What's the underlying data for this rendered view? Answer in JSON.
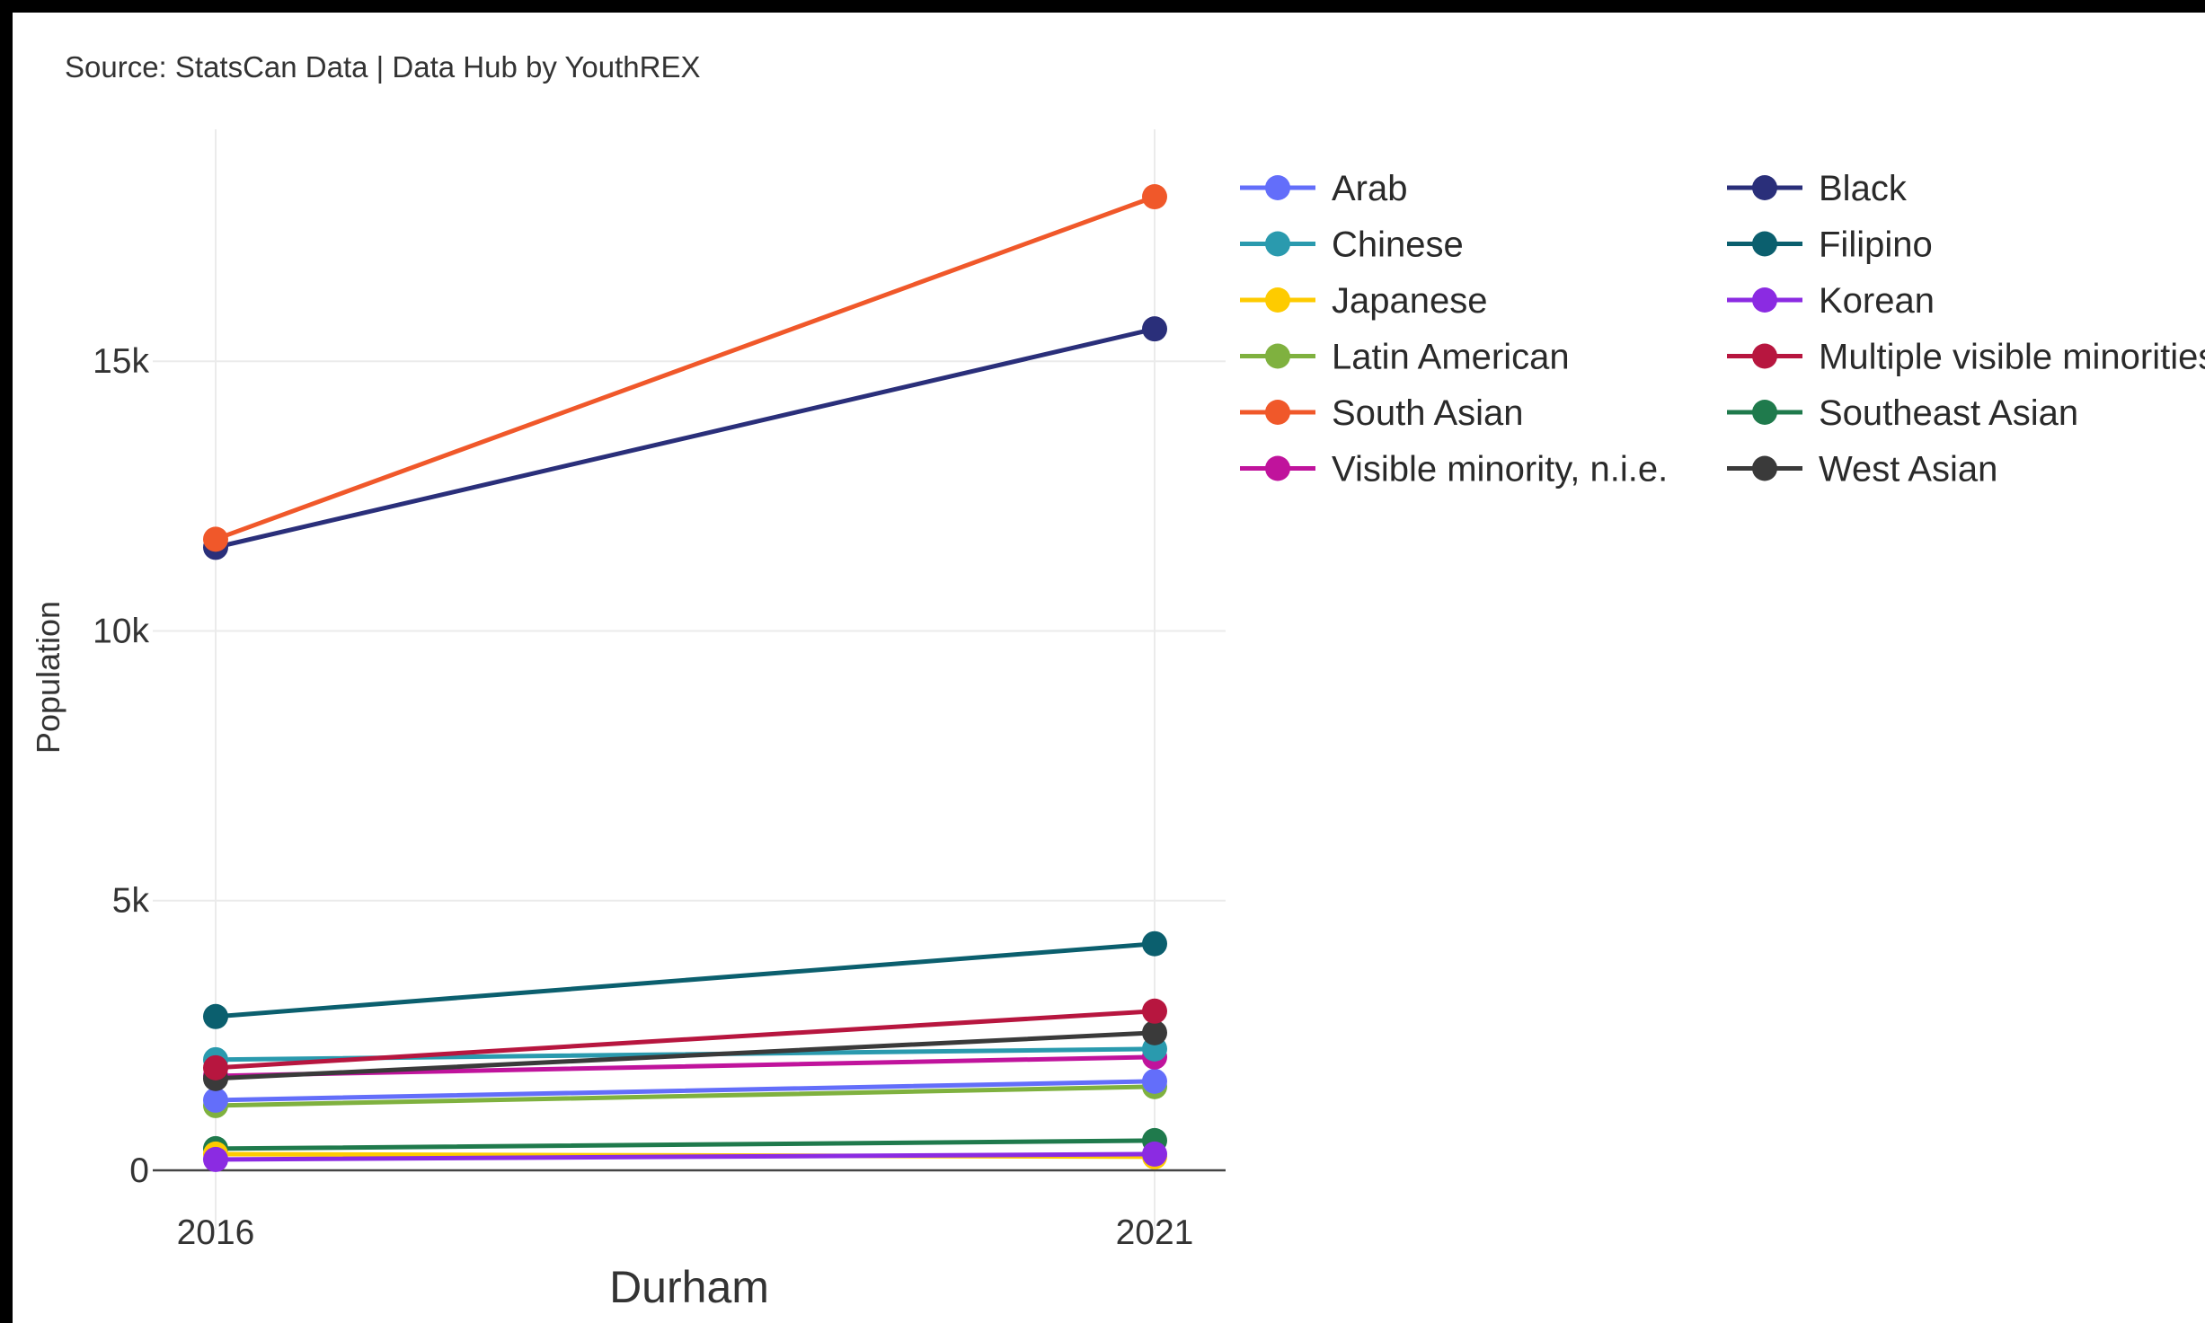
{
  "source_note": "Source: StatsCan Data | Data Hub by YouthREX",
  "chart_data": {
    "type": "line",
    "title": "",
    "xlabel": "Durham",
    "ylabel": "Population",
    "x": [
      "2016",
      "2021"
    ],
    "ylim": [
      -1100,
      19300
    ],
    "y_ticks": [
      0,
      5000,
      10000,
      15000
    ],
    "y_tick_labels": [
      "0",
      "5k",
      "10k",
      "15k"
    ],
    "grid": true,
    "legend_position": "right",
    "series": [
      {
        "name": "Arab",
        "color": "#636efa",
        "values": [
          1300,
          1650
        ]
      },
      {
        "name": "Black",
        "color": "#2a2f7a",
        "values": [
          11550,
          15600
        ]
      },
      {
        "name": "Chinese",
        "color": "#2a9aae",
        "values": [
          2050,
          2250
        ]
      },
      {
        "name": "Filipino",
        "color": "#0b5f6e",
        "values": [
          2850,
          4200
        ]
      },
      {
        "name": "Japanese",
        "color": "#fecb00",
        "values": [
          300,
          250
        ]
      },
      {
        "name": "Korean",
        "color": "#8b2be2",
        "values": [
          200,
          300
        ]
      },
      {
        "name": "Latin American",
        "color": "#7fb13f",
        "values": [
          1200,
          1550
        ]
      },
      {
        "name": "Multiple visible minorities",
        "color": "#b7163f",
        "values": [
          1900,
          2950
        ]
      },
      {
        "name": "South Asian",
        "color": "#f0582a",
        "values": [
          11700,
          18050
        ]
      },
      {
        "name": "Southeast Asian",
        "color": "#1f7a4c",
        "values": [
          400,
          550
        ]
      },
      {
        "name": "Visible minority, n.i.e.",
        "color": "#c0139c",
        "values": [
          1750,
          2100
        ]
      },
      {
        "name": "West Asian",
        "color": "#3a3a3a",
        "values": [
          1700,
          2550
        ]
      }
    ],
    "draw_order": [
      "Southeast Asian",
      "Japanese",
      "Korean",
      "Latin American",
      "Arab",
      "Visible minority, n.i.e.",
      "Chinese",
      "West Asian",
      "Multiple visible minorities",
      "Filipino",
      "Black",
      "South Asian"
    ],
    "legend_order": [
      "Arab",
      "Black",
      "Chinese",
      "Filipino",
      "Japanese",
      "Korean",
      "Latin American",
      "Multiple visible minorities",
      "South Asian",
      "Southeast Asian",
      "Visible minority, n.i.e.",
      "West Asian"
    ]
  }
}
